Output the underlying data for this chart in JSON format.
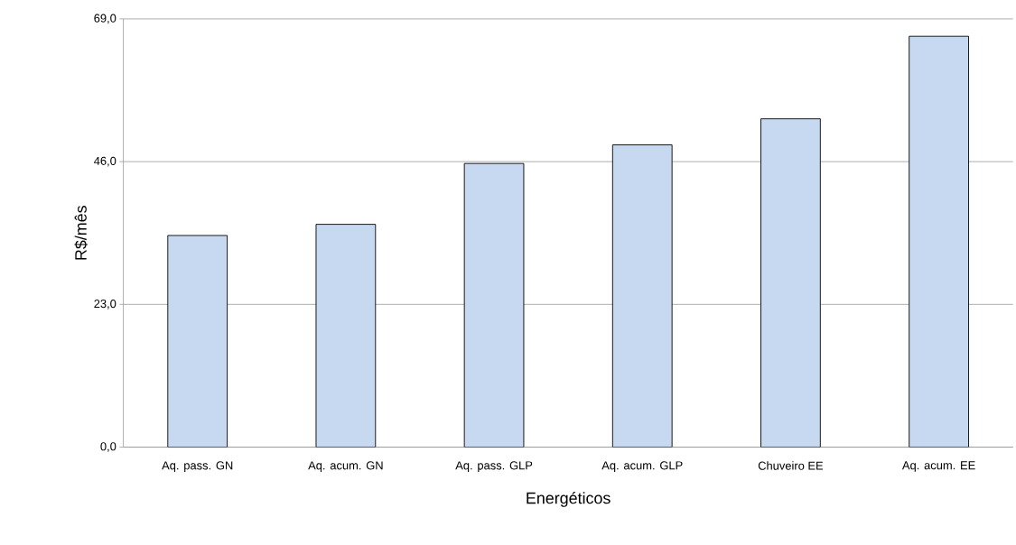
{
  "chart_data": {
    "type": "bar",
    "xlabel": "Energéticos",
    "ylabel": "R$/mês",
    "categories": [
      "Aq. pass. GN",
      "Aq. acum. GN",
      "Aq. pass. GLP",
      "Aq. acum. GLP",
      "Chuveiro EE",
      "Aq. acum. EE"
    ],
    "values": [
      34.1,
      35.9,
      45.7,
      48.7,
      52.9,
      66.2
    ],
    "color": "#c6d9f1",
    "ylim": [
      0,
      69
    ],
    "yticks": [
      {
        "value": 0,
        "label": "0,0"
      },
      {
        "value": 23,
        "label": "23,0"
      },
      {
        "value": 46,
        "label": "46,0"
      },
      {
        "value": 69,
        "label": "69,0"
      }
    ],
    "grid": "y"
  }
}
